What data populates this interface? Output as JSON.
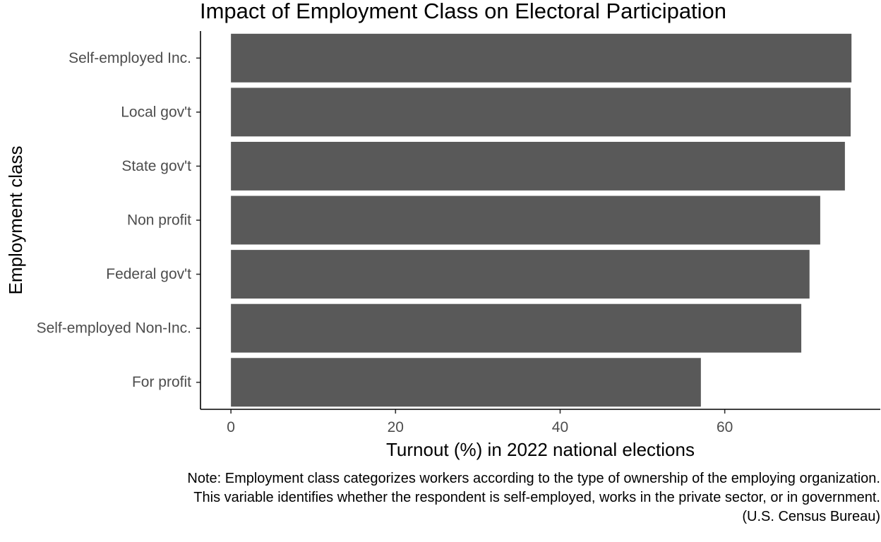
{
  "chart_data": {
    "type": "bar",
    "orientation": "horizontal",
    "title": "Impact of Employment Class on Electoral Participation",
    "xlabel": "Turnout (%) in 2022 national elections",
    "ylabel": "Employment class",
    "categories": [
      "Self-employed Inc.",
      "Local gov't",
      "State gov't",
      "Non profit",
      "Federal gov't",
      "Self-employed Non-Inc.",
      "For profit"
    ],
    "values": [
      75.4,
      75.3,
      74.6,
      71.6,
      70.3,
      69.3,
      57.1
    ],
    "xlim": [
      -3.7,
      78.9
    ],
    "xticks": [
      0,
      20,
      40,
      60
    ],
    "xtick_labels": [
      "0",
      "20",
      "40",
      "60"
    ],
    "bar_color": "#595959",
    "grid": false,
    "caption": [
      "Note: Employment class categorizes workers according to the type of ownership of the employing organization.",
      "This variable identifies whether the respondent is self-employed, works in the private sector, or in government.",
      "(U.S. Census Bureau)"
    ]
  }
}
